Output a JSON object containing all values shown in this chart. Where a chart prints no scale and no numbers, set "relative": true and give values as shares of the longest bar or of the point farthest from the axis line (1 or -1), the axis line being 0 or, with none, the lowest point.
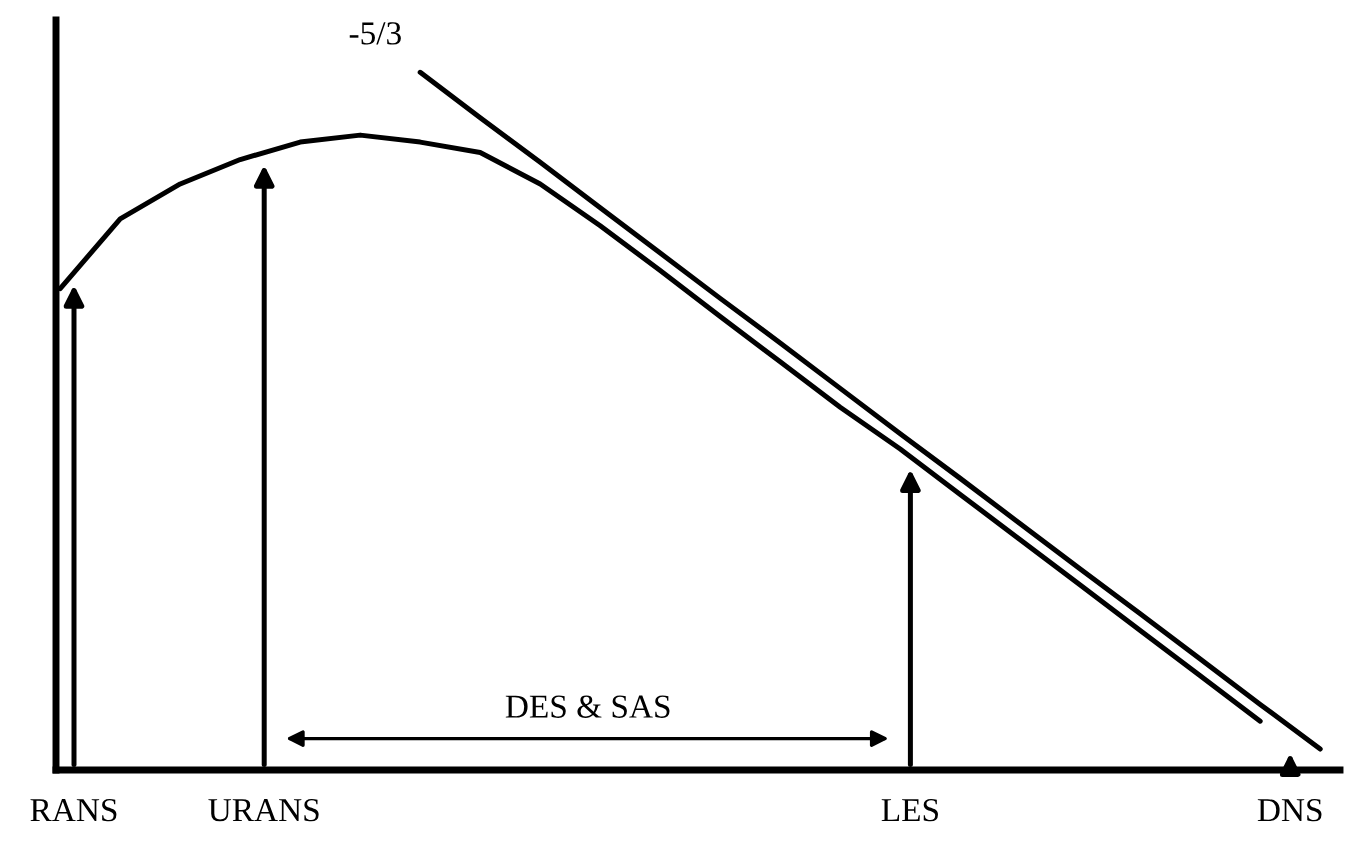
{
  "chart_data": {
    "type": "line",
    "relative": true,
    "categories": [
      null,
      null,
      null,
      null,
      null,
      null,
      null,
      null,
      null,
      null,
      null,
      null,
      null,
      null,
      null,
      null,
      null,
      null,
      null,
      null,
      null,
      null
    ],
    "series": [
      {
        "color": "#000000",
        "values": [
          0.69,
          0.79,
          0.84,
          0.875,
          0.9,
          0.91,
          0.9,
          0.885,
          0.84,
          0.78,
          0.716,
          0.65,
          0.585,
          0.52,
          0.46,
          0.395,
          0.33,
          0.265,
          0.2,
          0.135,
          0.07,
          null
        ]
      },
      {
        "name": "-5/3",
        "color": "#000000",
        "values": [
          null,
          null,
          null,
          null,
          null,
          null,
          1.0,
          0.935,
          0.871,
          0.806,
          0.741,
          0.676,
          0.612,
          0.547,
          0.482,
          0.418,
          0.353,
          0.288,
          0.224,
          0.159,
          0.094,
          0.03
        ]
      }
    ],
    "annotations": [
      "RANS",
      "URANS",
      "LES",
      "DNS",
      "DES & SAS"
    ],
    "line_style": "solid",
    "marker": "none"
  }
}
